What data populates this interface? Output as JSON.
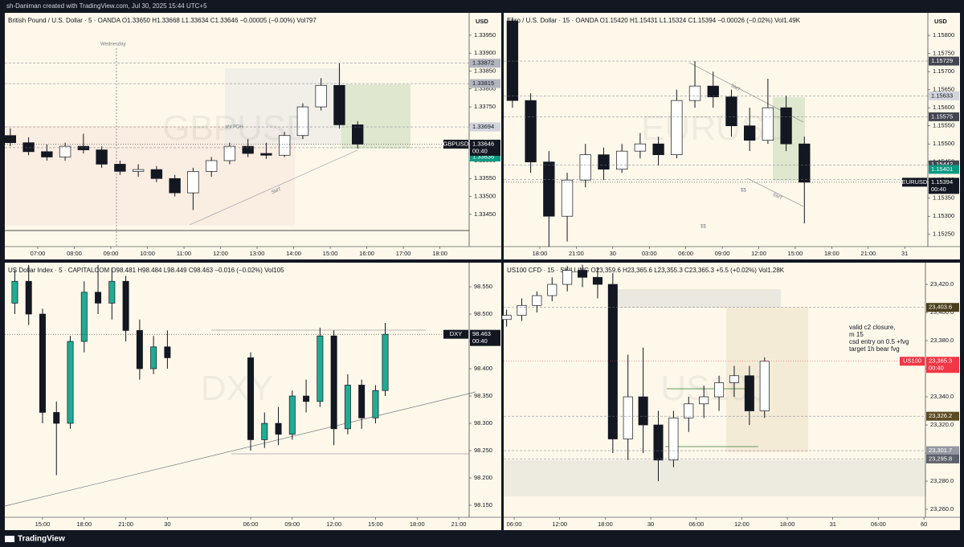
{
  "header": {
    "text": "sh-Daniman created with TradingView.com, Jul 30, 2025 15:44 UTC+5"
  },
  "footer": {
    "brand": "TradingView"
  },
  "chart_data": [
    {
      "type": "candlestick",
      "title": "British Pound / U.S. Dollar · 5 · OANDA  O1.33650 H1.33668 L1.33634 C1.33646 −0.00005 (−0.00%) Vol797",
      "currency": "USD",
      "watermark": "GBPUSD",
      "annotations": [
        "Wednesday",
        "ah/ PDH",
        "SMT"
      ],
      "up_color": "#ffffff",
      "down_color": "#131722",
      "wick_color": "#131722",
      "xlim": [
        6.1,
        18.8
      ],
      "xticks": [
        {
          "value": 7,
          "label": "07:00"
        },
        {
          "value": 8,
          "label": "08:00"
        },
        {
          "value": 9,
          "label": "09:00"
        },
        {
          "value": 10,
          "label": "10:00"
        },
        {
          "value": 11,
          "label": "11:00"
        },
        {
          "value": 12,
          "label": "12:00"
        },
        {
          "value": 13,
          "label": "13:00"
        },
        {
          "value": 14,
          "label": "14:00"
        },
        {
          "value": 15,
          "label": "15:00"
        },
        {
          "value": 16,
          "label": "16:00"
        },
        {
          "value": 17,
          "label": "17:00"
        },
        {
          "value": 18,
          "label": "18:00"
        }
      ],
      "ylim": [
        1.3336,
        1.34008
      ],
      "yticks": [
        {
          "value": 1.3345,
          "label": "1.33450"
        },
        {
          "value": 1.335,
          "label": "1.33500"
        },
        {
          "value": 1.3355,
          "label": "1.33550"
        },
        {
          "value": 1.336,
          "label": "1.33600"
        },
        {
          "value": 1.3365,
          "label": "1.33650"
        },
        {
          "value": 1.337,
          "label": "1.33700"
        },
        {
          "value": 1.3375,
          "label": "1.33750"
        },
        {
          "value": 1.338,
          "label": "1.33800"
        },
        {
          "value": 1.3385,
          "label": "1.33850"
        },
        {
          "value": 1.339,
          "label": "1.33900"
        },
        {
          "value": 1.3395,
          "label": "1.33950"
        }
      ],
      "x": [
        6.25,
        6.75,
        7.25,
        7.75,
        8.25,
        8.75,
        9.25,
        9.75,
        10.25,
        10.75,
        11.25,
        11.75,
        12.25,
        12.75,
        13.25,
        13.75,
        14.25,
        14.75,
        15.25,
        15.75
      ],
      "ohlc": [
        [
          1.3367,
          1.3369,
          1.3364,
          1.3365
        ],
        [
          1.3365,
          1.33665,
          1.33615,
          1.33625
        ],
        [
          1.33625,
          1.33645,
          1.336,
          1.3361
        ],
        [
          1.3361,
          1.3365,
          1.336,
          1.3364
        ],
        [
          1.3364,
          1.33675,
          1.3362,
          1.3363
        ],
        [
          1.3363,
          1.3364,
          1.3358,
          1.3359
        ],
        [
          1.3359,
          1.336,
          1.3356,
          1.3357
        ],
        [
          1.3357,
          1.3359,
          1.33555,
          1.33575
        ],
        [
          1.33575,
          1.33585,
          1.3354,
          1.3355
        ],
        [
          1.3355,
          1.3356,
          1.335,
          1.3351
        ],
        [
          1.3351,
          1.3358,
          1.33462,
          1.3357
        ],
        [
          1.3357,
          1.3361,
          1.33555,
          1.336
        ],
        [
          1.336,
          1.3365,
          1.3359,
          1.3364
        ],
        [
          1.3364,
          1.3366,
          1.3361,
          1.3362
        ],
        [
          1.3362,
          1.3365,
          1.33605,
          1.33615
        ],
        [
          1.33615,
          1.3368,
          1.3361,
          1.3367
        ],
        [
          1.3367,
          1.3376,
          1.3366,
          1.3375
        ],
        [
          1.3375,
          1.3383,
          1.3374,
          1.3381
        ],
        [
          1.3381,
          1.33872,
          1.3369,
          1.337
        ],
        [
          1.337,
          1.3371,
          1.33634,
          1.33646
        ]
      ],
      "price_tags": [
        {
          "value": 1.33872,
          "color": "#b2b5be",
          "text_color": "#131722"
        },
        {
          "value": 1.33815,
          "color": "#b2b5be",
          "text_color": "#131722"
        },
        {
          "value": 1.33694,
          "color": "#d1d4dc",
          "text_color": "#131722"
        },
        {
          "value": 1.33636,
          "color": "#089981",
          "text_color": "#ffffff"
        }
      ],
      "symbol_tag": {
        "symbol": "GBPUSD",
        "value": 1.33646,
        "countdown": "00:40",
        "color": "#131722"
      }
    },
    {
      "type": "candlestick",
      "title": "Euro / U.S. Dollar · 15 · OANDA  O1.15420 H1.15431 L1.15324 C1.15394 −0.00026 (−0.02%) Vol1.49K",
      "currency": "USD",
      "watermark": "EURUSD",
      "annotations": [
        "SMT",
        "SMT",
        "$$",
        "$$"
      ],
      "up_color": "#ffffff",
      "down_color": "#131722",
      "wick_color": "#131722",
      "xlim": [
        15.03,
        49.9
      ],
      "xticks": [
        {
          "value": 18,
          "label": "18:00"
        },
        {
          "value": 21,
          "label": "21:00"
        },
        {
          "value": 24,
          "label": "30"
        },
        {
          "value": 27,
          "label": "03:00"
        },
        {
          "value": 30,
          "label": "06:00"
        },
        {
          "value": 33,
          "label": "09:00"
        },
        {
          "value": 36,
          "label": "12:00"
        },
        {
          "value": 39,
          "label": "15:00"
        },
        {
          "value": 42,
          "label": "18:00"
        },
        {
          "value": 45,
          "label": "21:00"
        },
        {
          "value": 48,
          "label": "31"
        }
      ],
      "ylim": [
        1.15216,
        1.15858
      ],
      "yticks": [
        {
          "value": 1.1525,
          "label": "1.15250"
        },
        {
          "value": 1.153,
          "label": "1.15300"
        },
        {
          "value": 1.1535,
          "label": "1.15350"
        },
        {
          "value": 1.154,
          "label": "1.15400"
        },
        {
          "value": 1.1545,
          "label": "1.15450"
        },
        {
          "value": 1.155,
          "label": "1.15500"
        },
        {
          "value": 1.1555,
          "label": "1.15550"
        },
        {
          "value": 1.156,
          "label": "1.15600"
        },
        {
          "value": 1.1565,
          "label": "1.15650"
        },
        {
          "value": 1.157,
          "label": "1.15700"
        },
        {
          "value": 1.1575,
          "label": "1.15750"
        },
        {
          "value": 1.158,
          "label": "1.15800"
        }
      ],
      "x": [
        15.75,
        17.25,
        18.75,
        20.25,
        21.75,
        23.25,
        24.75,
        26.25,
        27.75,
        29.25,
        30.75,
        32.25,
        33.75,
        35.25,
        36.75,
        38.25,
        39.75
      ],
      "ohlc": [
        [
          1.1584,
          1.1585,
          1.156,
          1.1562
        ],
        [
          1.1562,
          1.1564,
          1.1542,
          1.1545
        ],
        [
          1.1545,
          1.1548,
          1.15215,
          1.153
        ],
        [
          1.153,
          1.1542,
          1.1523,
          1.154
        ],
        [
          1.154,
          1.155,
          1.1538,
          1.1547
        ],
        [
          1.1547,
          1.1549,
          1.154,
          1.1543
        ],
        [
          1.1543,
          1.155,
          1.1542,
          1.1548
        ],
        [
          1.1548,
          1.1553,
          1.1546,
          1.155
        ],
        [
          1.155,
          1.1552,
          1.1544,
          1.1547
        ],
        [
          1.1547,
          1.1565,
          1.1546,
          1.1562
        ],
        [
          1.1562,
          1.15729,
          1.156,
          1.1566
        ],
        [
          1.1566,
          1.157,
          1.156,
          1.1563
        ],
        [
          1.1563,
          1.1565,
          1.1552,
          1.1555
        ],
        [
          1.1555,
          1.156,
          1.1548,
          1.1551
        ],
        [
          1.1551,
          1.1568,
          1.155,
          1.156
        ],
        [
          1.156,
          1.15633,
          1.1548,
          1.155
        ],
        [
          1.155,
          1.1552,
          1.1528,
          1.15394
        ]
      ],
      "price_tags": [
        {
          "value": 1.15729,
          "color": "#434651",
          "text_color": "#ffffff"
        },
        {
          "value": 1.15633,
          "color": "#d1d4dc",
          "text_color": "#131722"
        },
        {
          "value": 1.15575,
          "color": "#434651",
          "text_color": "#ffffff"
        },
        {
          "value": 1.15442,
          "color": "#434651",
          "text_color": "#ffffff"
        },
        {
          "value": 1.15401,
          "color": "#089981",
          "text_color": "#ffffff"
        }
      ],
      "symbol_tag": {
        "symbol": "EURUSD",
        "value": 1.15394,
        "countdown": "00:40",
        "color": "#131722"
      }
    },
    {
      "type": "candlestick",
      "title": "US Dollar Index · 5 · CAPITALCOM  O98.481 H98.484 L98.449 C98.463 −0.016 (−0.02%) Vol105",
      "watermark": "DXY",
      "up_color": "#22ab94",
      "down_color": "#131722",
      "wick_color": "#131722",
      "xlim": [
        12.28,
        45.75
      ],
      "xticks": [
        {
          "value": 15,
          "label": "15:00"
        },
        {
          "value": 18,
          "label": "18:00"
        },
        {
          "value": 21,
          "label": "21:00"
        },
        {
          "value": 24,
          "label": "30"
        },
        {
          "value": 30,
          "label": "06:00"
        },
        {
          "value": 33,
          "label": "09:00"
        },
        {
          "value": 36,
          "label": "12:00"
        },
        {
          "value": 39,
          "label": "15:00"
        },
        {
          "value": 42,
          "label": "18:00"
        },
        {
          "value": 45,
          "label": "21:00"
        }
      ],
      "ylim": [
        98.128,
        98.5912
      ],
      "yticks": [
        {
          "value": 98.15,
          "label": "98.150"
        },
        {
          "value": 98.2,
          "label": "98.200"
        },
        {
          "value": 98.25,
          "label": "98.250"
        },
        {
          "value": 98.3,
          "label": "98.300"
        },
        {
          "value": 98.35,
          "label": "98.350"
        },
        {
          "value": 98.4,
          "label": "98.400"
        },
        {
          "value": 98.45,
          "label": "98.450"
        },
        {
          "value": 98.5,
          "label": "98.500"
        },
        {
          "value": 98.55,
          "label": "98.550"
        }
      ],
      "x": [
        13,
        14,
        15,
        16,
        17,
        18,
        19,
        20,
        21,
        22,
        23,
        24,
        30,
        31,
        32,
        33,
        34,
        35,
        36,
        37,
        38,
        39,
        39.7
      ],
      "ohlc": [
        [
          98.52,
          98.58,
          98.5,
          98.56
        ],
        [
          98.56,
          98.59,
          98.48,
          98.5
        ],
        [
          98.5,
          98.51,
          98.3,
          98.32
        ],
        [
          98.32,
          98.34,
          98.205,
          98.3
        ],
        [
          98.3,
          98.46,
          98.29,
          98.45
        ],
        [
          98.45,
          98.56,
          98.43,
          98.54
        ],
        [
          98.54,
          98.59,
          98.5,
          98.52
        ],
        [
          98.52,
          98.585,
          98.49,
          98.56
        ],
        [
          98.56,
          98.57,
          98.45,
          98.47
        ],
        [
          98.47,
          98.49,
          98.38,
          98.4
        ],
        [
          98.4,
          98.46,
          98.39,
          98.44
        ],
        [
          98.44,
          98.47,
          98.4,
          98.42
        ],
        [
          98.42,
          98.43,
          98.25,
          98.27
        ],
        [
          98.27,
          98.32,
          98.255,
          98.3
        ],
        [
          98.3,
          98.33,
          98.26,
          98.28
        ],
        [
          98.28,
          98.36,
          98.27,
          98.35
        ],
        [
          98.35,
          98.38,
          98.32,
          98.34
        ],
        [
          98.34,
          98.475,
          98.33,
          98.46
        ],
        [
          98.46,
          98.47,
          98.26,
          98.29
        ],
        [
          98.29,
          98.39,
          98.28,
          98.37
        ],
        [
          98.37,
          98.38,
          98.29,
          98.31
        ],
        [
          98.31,
          98.37,
          98.3,
          98.36
        ],
        [
          98.36,
          98.484,
          98.35,
          98.463
        ]
      ],
      "price_tags": [],
      "symbol_tag": {
        "symbol": "DXY",
        "value": 98.463,
        "countdown": "00:40",
        "color": "#131722"
      }
    },
    {
      "type": "candlestick",
      "title": "US100 CFD · 15 · SKILLING  O23,359.6 H23,365.6 L23,355.3 C23,365.3 +5.5 (+0.02%) Vol1.28K",
      "watermark": "US100",
      "note": [
        "valid c2 closure,",
        "m 15",
        "csd entry on 0.5 +fvg",
        "target 1h bear fvg"
      ],
      "up_color": "#ffffff",
      "down_color": "#131722",
      "wick_color": "#131722",
      "xlim": [
        4.62,
        60.2
      ],
      "xticks": [
        {
          "value": 6,
          "label": "06:00"
        },
        {
          "value": 12,
          "label": "12:00"
        },
        {
          "value": 18,
          "label": "18:00"
        },
        {
          "value": 24,
          "label": "30"
        },
        {
          "value": 30,
          "label": "06:00"
        },
        {
          "value": 36,
          "label": "12:00"
        },
        {
          "value": 42,
          "label": "18:00"
        },
        {
          "value": 48,
          "label": "31"
        },
        {
          "value": 54,
          "label": "06:00"
        },
        60
      ],
      "ylim": [
        23254.3,
        23434.3
      ],
      "yticks": [
        {
          "value": 23260,
          "label": "23,260.0"
        },
        {
          "value": 23280,
          "label": "23,280.0"
        },
        {
          "value": 23300,
          "label": "23,300.0"
        },
        {
          "value": 23320,
          "label": "23,320.0"
        },
        {
          "value": 23340,
          "label": "23,340.0"
        },
        {
          "value": 23360,
          "label": "23,360.0"
        },
        {
          "value": 23380,
          "label": "23,380.0"
        },
        {
          "value": 23400,
          "label": "23,400.0"
        },
        {
          "value": 23420,
          "label": "23,420.0"
        }
      ],
      "x": [
        5,
        7,
        9,
        11,
        13,
        15,
        17,
        19,
        21,
        23,
        25,
        27,
        29,
        31,
        33,
        35,
        37,
        39
      ],
      "ohlc": [
        [
          23395,
          23402,
          23390,
          23398
        ],
        [
          23398,
          23410,
          23394,
          23405
        ],
        [
          23405,
          23415,
          23400,
          23412
        ],
        [
          23412,
          23425,
          23408,
          23420
        ],
        [
          23420,
          23433,
          23415,
          23430
        ],
        [
          23430,
          23434,
          23418,
          23425
        ],
        [
          23425,
          23432,
          23410,
          23420
        ],
        [
          23420,
          23428,
          23300,
          23310
        ],
        [
          23310,
          23370,
          23295,
          23340
        ],
        [
          23340,
          23375,
          23300,
          23320
        ],
        [
          23320,
          23330,
          23280,
          23295
        ],
        [
          23295,
          23330,
          23290,
          23325
        ],
        [
          23325,
          23340,
          23315,
          23335
        ],
        [
          23335,
          23348,
          23325,
          23340
        ],
        [
          23340,
          23355,
          23330,
          23350
        ],
        [
          23350,
          23362,
          23340,
          23355
        ],
        [
          23355,
          23362,
          23320,
          23330
        ],
        [
          23330,
          23368,
          23325,
          23365.3
        ]
      ],
      "price_tags": [
        {
          "value": 23403.6,
          "label": "23,403.6",
          "color": "#4a3f1c",
          "text_color": "#ffffff"
        },
        {
          "value": 23326.2,
          "label": "23,326.2",
          "color": "#5c4b22",
          "text_color": "#ffffff"
        },
        {
          "value": 23301.7,
          "label": "23,301.7",
          "color": "#9598a1",
          "text_color": "#ffffff"
        },
        {
          "value": 23295.8,
          "label": "23,295.8",
          "color": "#5d606b",
          "text_color": "#ffffff"
        }
      ],
      "symbol_tag": {
        "symbol": "US100",
        "value": 23365.3,
        "label": "23,365.3",
        "countdown": "00:40",
        "color": "#f23645"
      }
    }
  ]
}
